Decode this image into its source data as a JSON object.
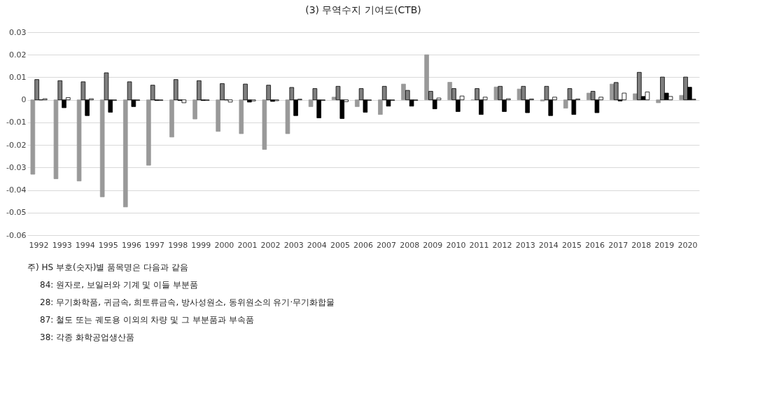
{
  "chart_data": {
    "type": "bar",
    "title": "(3) 무역수지 기여도(CTB)",
    "categories": [
      "1992",
      "1993",
      "1994",
      "1995",
      "1996",
      "1997",
      "1998",
      "1999",
      "2000",
      "2001",
      "2002",
      "2003",
      "2004",
      "2005",
      "2006",
      "2007",
      "2008",
      "2009",
      "2010",
      "2011",
      "2012",
      "2013",
      "2014",
      "2015",
      "2016",
      "2017",
      "2018",
      "2019",
      "2020"
    ],
    "series": [
      {
        "color": "#999999",
        "values": [
          -0.033,
          -0.035,
          -0.036,
          -0.043,
          -0.0475,
          -0.029,
          -0.0165,
          -0.0085,
          -0.014,
          -0.015,
          -0.022,
          -0.015,
          -0.003,
          0.0012,
          -0.003,
          -0.0065,
          0.007,
          0.02,
          0.0078,
          0,
          0.0057,
          0.0048,
          -0.0005,
          -0.0037,
          0.003,
          0.007,
          0.0027,
          -0.0013,
          0.002
        ]
      },
      {
        "color": "#7f7f7f",
        "values": [
          0.009,
          0.0085,
          0.008,
          0.012,
          0.008,
          0.0065,
          0.009,
          0.0085,
          0.0072,
          0.007,
          0.0065,
          0.0055,
          0.005,
          0.006,
          0.005,
          0.006,
          0.0042,
          0.0038,
          0.005,
          0.005,
          0.006,
          0.006,
          0.006,
          0.005,
          0.0038,
          0.0077,
          0.0122,
          0.0101,
          0.0101
        ]
      },
      {
        "color": "#000000",
        "values": [
          0,
          -0.0035,
          -0.007,
          -0.0055,
          -0.003,
          -0.0003,
          -0.0003,
          -0.0003,
          0,
          -0.001,
          -0.0007,
          -0.007,
          -0.008,
          -0.0083,
          -0.0055,
          -0.0028,
          -0.0028,
          -0.004,
          -0.0052,
          -0.0065,
          -0.0052,
          -0.0057,
          -0.007,
          -0.0065,
          -0.0057,
          -0.0005,
          0.0015,
          0.003,
          0.0056
        ]
      },
      {
        "color": "#ffffff",
        "values": [
          0.0005,
          0.001,
          0.0005,
          -0.0003,
          -0.0003,
          -0.0003,
          -0.0013,
          -0.0003,
          -0.001,
          -0.0005,
          -0.0004,
          0.0003,
          -0.0003,
          -0.0008,
          -0.0003,
          -0.0003,
          -0.0003,
          0.0008,
          0.0017,
          0.0012,
          0.0005,
          0.0004,
          0.0012,
          0.0004,
          0.0012,
          0.003,
          0.0035,
          0.0015,
          0.0003
        ]
      }
    ],
    "ylim": [
      -0.06,
      0.03
    ],
    "yticks": [
      -0.06,
      -0.05,
      -0.04,
      -0.03,
      -0.02,
      -0.01,
      0,
      0.01,
      0.02,
      0.03
    ],
    "grid": "y",
    "legend": false,
    "annotations": [
      "주) HS 부호(숫자)별 품목명은 다음과 같음",
      "84: 원자로, 보일러와 기계 및 이들 부분품",
      "28: 무기화학품, 귀금속, 희토류금속, 방사성원소, 동위원소의 유기·무기화합물",
      "87: 철도 또는 궤도용 이외의 차량 및 그 부분품과 부속품",
      "38: 각종 화학공업생산품"
    ]
  }
}
